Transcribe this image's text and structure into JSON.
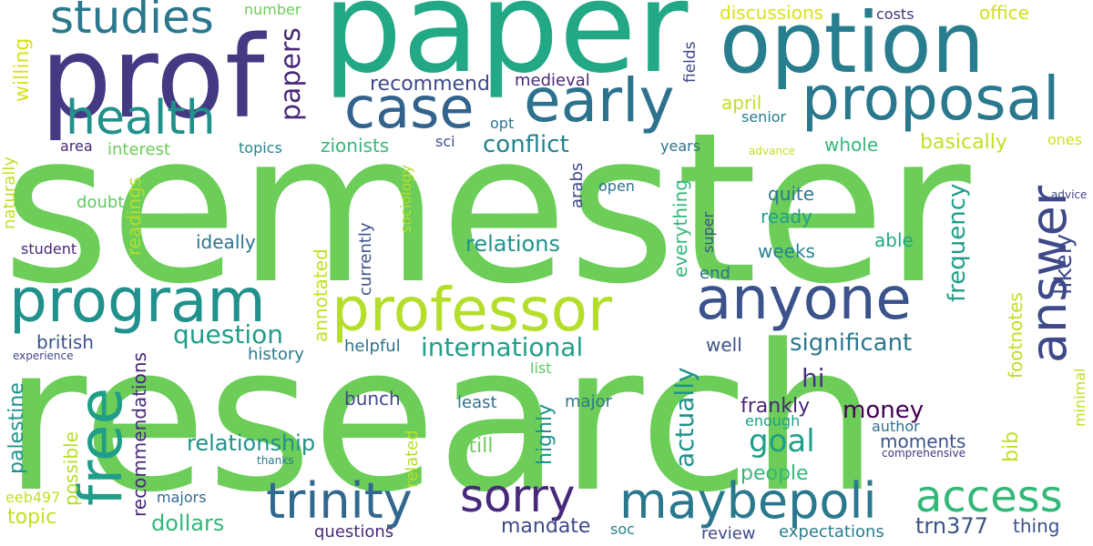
{
  "words": [
    {
      "text": "semester",
      "color": "#6ccd59",
      "vertical": false
    },
    {
      "text": "research",
      "color": "#6ccd59",
      "vertical": false
    },
    {
      "text": "paper",
      "color": "#22a884",
      "vertical": false
    },
    {
      "text": "prof",
      "color": "#443983",
      "vertical": false
    },
    {
      "text": "option",
      "color": "#287d8e",
      "vertical": false
    },
    {
      "text": "proposal",
      "color": "#2a788e",
      "vertical": false
    },
    {
      "text": "early",
      "color": "#2c728e",
      "vertical": false
    },
    {
      "text": "case",
      "color": "#33638d",
      "vertical": false
    },
    {
      "text": "studies",
      "color": "#2a788e",
      "vertical": false
    },
    {
      "text": "health",
      "color": "#21918c",
      "vertical": false
    },
    {
      "text": "program",
      "color": "#21918c",
      "vertical": false
    },
    {
      "text": "professor",
      "color": "#b5de2b",
      "vertical": false
    },
    {
      "text": "anyone",
      "color": "#3b528b",
      "vertical": false
    },
    {
      "text": "answer",
      "color": "#3e4989",
      "vertical": true
    },
    {
      "text": "free",
      "color": "#1f9e89",
      "vertical": true
    },
    {
      "text": "trinity",
      "color": "#31688e",
      "vertical": false
    },
    {
      "text": "sorry",
      "color": "#482878",
      "vertical": false
    },
    {
      "text": "maybepoli",
      "color": "#2a788e",
      "vertical": false
    },
    {
      "text": "access",
      "color": "#35b779",
      "vertical": false
    },
    {
      "text": "papers",
      "color": "#482878",
      "vertical": true
    },
    {
      "text": "recommend",
      "color": "#3e4989",
      "vertical": false
    },
    {
      "text": "medieval",
      "color": "#482878",
      "vertical": false
    },
    {
      "text": "discussions",
      "color": "#d8e219",
      "vertical": false
    },
    {
      "text": "costs",
      "color": "#46337e",
      "vertical": false
    },
    {
      "text": "office",
      "color": "#d0e11c",
      "vertical": false
    },
    {
      "text": "number",
      "color": "#6ccd59",
      "vertical": false
    },
    {
      "text": "fields",
      "color": "#3e4989",
      "vertical": true
    },
    {
      "text": "willing",
      "color": "#d8e219",
      "vertical": true
    },
    {
      "text": "april",
      "color": "#c2df23",
      "vertical": false
    },
    {
      "text": "senior",
      "color": "#287d8e",
      "vertical": false
    },
    {
      "text": "ones",
      "color": "#d0e11c",
      "vertical": false
    },
    {
      "text": "conflict",
      "color": "#25838e",
      "vertical": false
    },
    {
      "text": "zionists",
      "color": "#35b779",
      "vertical": false
    },
    {
      "text": "sci",
      "color": "#3b528b",
      "vertical": false
    },
    {
      "text": "opt",
      "color": "#2c728e",
      "vertical": false
    },
    {
      "text": "years",
      "color": "#2c728e",
      "vertical": false
    },
    {
      "text": "advance",
      "color": "#c2df23",
      "vertical": false
    },
    {
      "text": "whole",
      "color": "#35b779",
      "vertical": false
    },
    {
      "text": "basically",
      "color": "#c2df23",
      "vertical": false
    },
    {
      "text": "area",
      "color": "#482878",
      "vertical": false
    },
    {
      "text": "interest",
      "color": "#6ccd59",
      "vertical": false
    },
    {
      "text": "topics",
      "color": "#25838e",
      "vertical": false
    },
    {
      "text": "naturally",
      "color": "#c2df23",
      "vertical": true
    },
    {
      "text": "sociology",
      "color": "#b5de2b",
      "vertical": true
    },
    {
      "text": "arabs",
      "color": "#3e4989",
      "vertical": true
    },
    {
      "text": "open",
      "color": "#2c728e",
      "vertical": false
    },
    {
      "text": "quite",
      "color": "#2a788e",
      "vertical": false
    },
    {
      "text": "ready",
      "color": "#1f9e89",
      "vertical": false
    },
    {
      "text": "everything",
      "color": "#35b779",
      "vertical": true
    },
    {
      "text": "super",
      "color": "#3b528b",
      "vertical": true
    },
    {
      "text": "frequency",
      "color": "#1f9e89",
      "vertical": true
    },
    {
      "text": "likely",
      "color": "#3e4989",
      "vertical": true
    },
    {
      "text": "advice",
      "color": "#3e4989",
      "vertical": false
    },
    {
      "text": "doubt",
      "color": "#5ec962",
      "vertical": false
    },
    {
      "text": "readings",
      "color": "#b5de2b",
      "vertical": true
    },
    {
      "text": "currently",
      "color": "#3b528b",
      "vertical": true
    },
    {
      "text": "ideally",
      "color": "#2c728e",
      "vertical": false
    },
    {
      "text": "relations",
      "color": "#21918c",
      "vertical": false
    },
    {
      "text": "weeks",
      "color": "#25838e",
      "vertical": false
    },
    {
      "text": "able",
      "color": "#22a884",
      "vertical": false
    },
    {
      "text": "student",
      "color": "#482878",
      "vertical": false
    },
    {
      "text": "annotated",
      "color": "#c2df23",
      "vertical": true
    },
    {
      "text": "end",
      "color": "#2c728e",
      "vertical": false
    },
    {
      "text": "footnotes",
      "color": "#c2df23",
      "vertical": true
    },
    {
      "text": "question",
      "color": "#1f9e89",
      "vertical": false
    },
    {
      "text": "british",
      "color": "#3b528b",
      "vertical": false
    },
    {
      "text": "experience",
      "color": "#3e4989",
      "vertical": false
    },
    {
      "text": "history",
      "color": "#2a788e",
      "vertical": false
    },
    {
      "text": "helpful",
      "color": "#2c728e",
      "vertical": false
    },
    {
      "text": "international",
      "color": "#1f9e89",
      "vertical": false
    },
    {
      "text": "well",
      "color": "#3b528b",
      "vertical": false
    },
    {
      "text": "significant",
      "color": "#2a788e",
      "vertical": false
    },
    {
      "text": "actually",
      "color": "#21918c",
      "vertical": true
    },
    {
      "text": "list",
      "color": "#5ec962",
      "vertical": false
    },
    {
      "text": "palestine",
      "color": "#21918c",
      "vertical": true
    },
    {
      "text": "recommendations",
      "color": "#482878",
      "vertical": true
    },
    {
      "text": "possible",
      "color": "#b5de2b",
      "vertical": true
    },
    {
      "text": "bunch",
      "color": "#3e4989",
      "vertical": false
    },
    {
      "text": "least",
      "color": "#2c728e",
      "vertical": false
    },
    {
      "text": "major",
      "color": "#2a788e",
      "vertical": false
    },
    {
      "text": "highly",
      "color": "#21918c",
      "vertical": true
    },
    {
      "text": "hi",
      "color": "#46337e",
      "vertical": false
    },
    {
      "text": "frankly",
      "color": "#482878",
      "vertical": false
    },
    {
      "text": "money",
      "color": "#440154",
      "vertical": false
    },
    {
      "text": "goal",
      "color": "#1f9e89",
      "vertical": false
    },
    {
      "text": "moments",
      "color": "#3b528b",
      "vertical": false
    },
    {
      "text": "author",
      "color": "#2c728e",
      "vertical": false
    },
    {
      "text": "enough",
      "color": "#1f9e89",
      "vertical": false
    },
    {
      "text": "comprehensive",
      "color": "#46337e",
      "vertical": false
    },
    {
      "text": "minimal",
      "color": "#c2df23",
      "vertical": true
    },
    {
      "text": "relationship",
      "color": "#21918c",
      "vertical": false
    },
    {
      "text": "still",
      "color": "#6ccd59",
      "vertical": false
    },
    {
      "text": "thanks",
      "color": "#2a788e",
      "vertical": false
    },
    {
      "text": "related",
      "color": "#b5de2b",
      "vertical": true
    },
    {
      "text": "bib",
      "color": "#c2df23",
      "vertical": true
    },
    {
      "text": "people",
      "color": "#35b779",
      "vertical": false
    },
    {
      "text": "eeb497",
      "color": "#c2df23",
      "vertical": false
    },
    {
      "text": "majors",
      "color": "#31688e",
      "vertical": false
    },
    {
      "text": "topic",
      "color": "#c2df23",
      "vertical": false
    },
    {
      "text": "dollars",
      "color": "#35b779",
      "vertical": false
    },
    {
      "text": "mandate",
      "color": "#3e4989",
      "vertical": false
    },
    {
      "text": "trn377",
      "color": "#3b528b",
      "vertical": false
    },
    {
      "text": "thing",
      "color": "#3b528b",
      "vertical": false
    },
    {
      "text": "questions",
      "color": "#482878",
      "vertical": false
    },
    {
      "text": "soc",
      "color": "#25838e",
      "vertical": false
    },
    {
      "text": "review",
      "color": "#3e4989",
      "vertical": false
    },
    {
      "text": "expectations",
      "color": "#287d8e",
      "vertical": false
    }
  ]
}
